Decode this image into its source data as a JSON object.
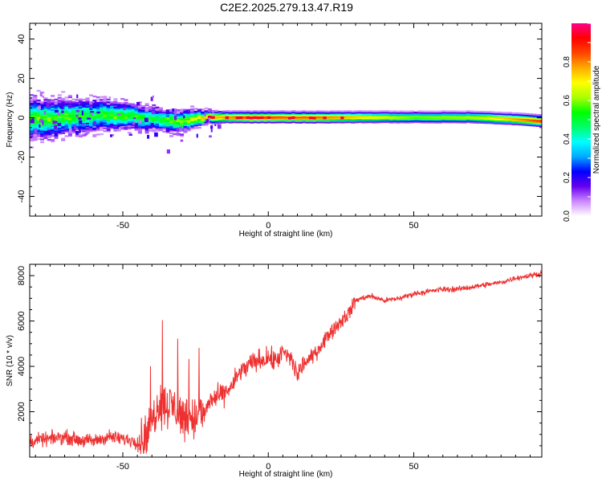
{
  "title": "C2E2.2025.279.13.47.R19",
  "chart_data": [
    {
      "type": "heatmap",
      "title": "C2E2.2025.279.13.47.R19",
      "xlabel": "Height of straight line (km)",
      "ylabel": "Frequency (Hz)",
      "xlim": [
        -82,
        94
      ],
      "ylim": [
        -50,
        48
      ],
      "xticks": [
        -50,
        0,
        50
      ],
      "yticks": [
        -40,
        -20,
        0,
        20,
        40
      ],
      "colorbar": {
        "label": "Normalized spectral amplitude",
        "range": [
          0,
          1
        ],
        "ticks": [
          "0.0",
          "0.2",
          "0.4",
          "0.6",
          "0.8"
        ],
        "stops": [
          "#ffffff",
          "#cc88ff",
          "#6600ee",
          "#0000ff",
          "#00aaff",
          "#00ffff",
          "#00ff66",
          "#00ff00",
          "#aaff00",
          "#ffff00",
          "#ffaa00",
          "#ff4400",
          "#ff0000",
          "#ff0088"
        ]
      },
      "band_profile": {
        "x": [
          -80,
          -70,
          -60,
          -50,
          -40,
          -30,
          -22,
          -15,
          -5,
          5,
          15,
          30,
          50,
          70,
          85,
          94
        ],
        "center_hz": [
          -1,
          0,
          1,
          1,
          -1,
          -2,
          0,
          0,
          0,
          0,
          0,
          0,
          0,
          0,
          -1,
          -2
        ],
        "halfwidth_hz": [
          9,
          8,
          7,
          6,
          5,
          5,
          3,
          2.5,
          2.5,
          2.5,
          2.5,
          2.5,
          2.5,
          2.5,
          2.5,
          2.5
        ],
        "peak_amplitude": [
          0.55,
          0.55,
          0.5,
          0.55,
          0.5,
          0.6,
          0.75,
          0.8,
          0.9,
          0.85,
          0.85,
          0.75,
          0.6,
          0.65,
          0.8,
          0.9
        ]
      }
    },
    {
      "type": "line",
      "xlabel": "Height of straight line (km)",
      "ylabel": "SNR (10 * v/v)",
      "xlim": [
        -82,
        94
      ],
      "ylim": [
        0,
        8500
      ],
      "xticks": [
        -50,
        0,
        50
      ],
      "yticks": [
        2000,
        4000,
        6000,
        8000
      ],
      "color": "#ee3030",
      "series": [
        {
          "name": "SNR",
          "x": [
            -82,
            -75,
            -70,
            -65,
            -60,
            -55,
            -50,
            -45,
            -42,
            -40,
            -38,
            -35,
            -32,
            -30,
            -27,
            -25,
            -22,
            -20,
            -18,
            -15,
            -12,
            -10,
            -8,
            -5,
            -2,
            0,
            2,
            5,
            8,
            10,
            12,
            15,
            18,
            20,
            22,
            25,
            28,
            30,
            32,
            35,
            40,
            45,
            50,
            55,
            60,
            65,
            70,
            75,
            80,
            85,
            90,
            94
          ],
          "values": [
            700,
            800,
            900,
            750,
            700,
            900,
            800,
            700,
            900,
            1500,
            2400,
            2300,
            2200,
            1800,
            1800,
            1700,
            1900,
            2500,
            2600,
            2800,
            3200,
            3700,
            3900,
            4200,
            4300,
            4400,
            4200,
            4600,
            4300,
            3600,
            4100,
            4400,
            4900,
            5300,
            5600,
            6000,
            6400,
            6900,
            7000,
            7100,
            6900,
            7000,
            7200,
            7300,
            7400,
            7400,
            7500,
            7600,
            7700,
            7900,
            8000,
            8100
          ]
        }
      ]
    }
  ]
}
